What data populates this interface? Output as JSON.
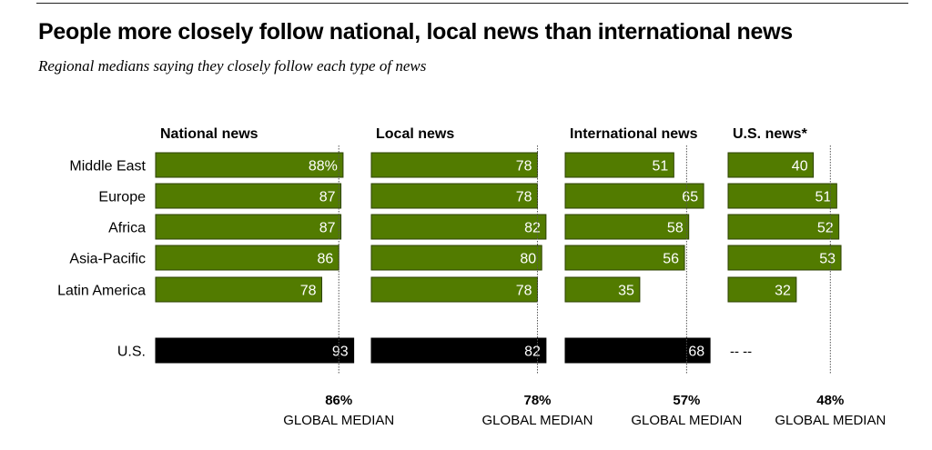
{
  "header": {
    "title": "People more closely follow national, local news than international news",
    "subtitle": "Regional medians saying they closely follow each type of news"
  },
  "colors": {
    "region_bar": "#527b00",
    "region_bar_border": "#2c4200",
    "us_bar": "#000000",
    "median_line": "#555555"
  },
  "chart_data": {
    "type": "bar",
    "orientation": "horizontal",
    "title": "People more closely follow national, local news than international news",
    "subtitle": "Regional medians saying they closely follow each type of news",
    "categories": [
      "Middle East",
      "Europe",
      "Africa",
      "Asia-Pacific",
      "Latin America",
      "U.S."
    ],
    "value_suffix_first_row": "%",
    "missing_label": "-- --",
    "median_caption": "GLOBAL MEDIAN",
    "series": [
      {
        "name": "National news",
        "values": [
          88,
          87,
          87,
          86,
          78,
          93
        ],
        "global_median": 86
      },
      {
        "name": "Local news",
        "values": [
          78,
          78,
          82,
          80,
          78,
          82
        ],
        "global_median": 78
      },
      {
        "name": "International news",
        "values": [
          51,
          65,
          58,
          56,
          35,
          68
        ],
        "global_median": 57
      },
      {
        "name": "U.S. news*",
        "values": [
          40,
          51,
          52,
          53,
          32,
          null
        ],
        "global_median": 48
      }
    ],
    "xlim": [
      0,
      100
    ],
    "grid": false,
    "legend": "none"
  }
}
